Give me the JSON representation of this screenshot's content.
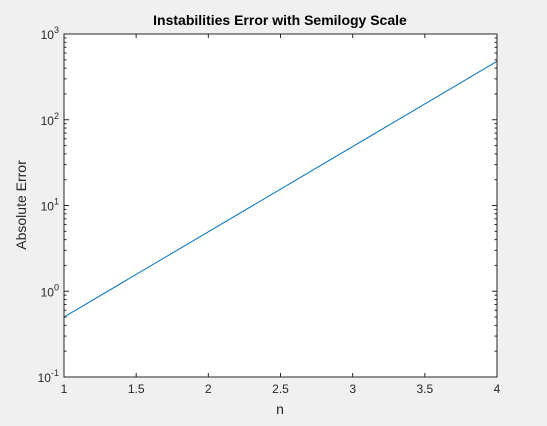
{
  "chart_data": {
    "type": "line",
    "title": "Instabilities Error with Semilogy Scale",
    "xlabel": "n",
    "ylabel": "Absolute Error",
    "xlim": [
      1,
      4
    ],
    "ylim": [
      0.1,
      1000
    ],
    "yscale": "log",
    "grid": false,
    "x_ticks": [
      "1",
      "1.5",
      "2",
      "2.5",
      "3",
      "3.5",
      "4"
    ],
    "y_ticks": [
      {
        "base": "10",
        "exp": "-1"
      },
      {
        "base": "10",
        "exp": "0"
      },
      {
        "base": "10",
        "exp": "1"
      },
      {
        "base": "10",
        "exp": "2"
      },
      {
        "base": "10",
        "exp": "3"
      }
    ],
    "series": [
      {
        "color": "#0072bd",
        "x": [
          1,
          4
        ],
        "y": [
          0.5,
          480
        ]
      }
    ]
  },
  "colors": {
    "figure_bg": "#f0f0f0",
    "axes_bg": "#ffffff",
    "axis": "#262626"
  }
}
